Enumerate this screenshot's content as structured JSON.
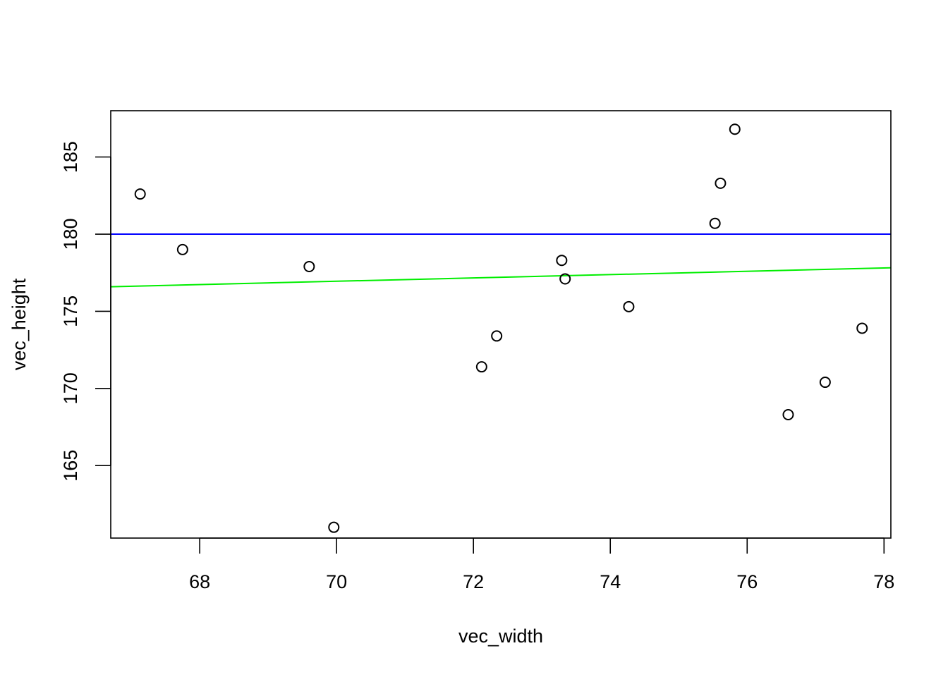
{
  "chart_data": {
    "type": "scatter",
    "title": "",
    "xlabel": "vec_width",
    "ylabel": "vec_height",
    "xlim": [
      66.7,
      78.1
    ],
    "ylim": [
      160.3,
      188.0
    ],
    "x_ticks": [
      68,
      70,
      72,
      74,
      76,
      78
    ],
    "y_ticks": [
      165,
      170,
      175,
      180,
      185
    ],
    "grid": false,
    "legend": "none",
    "series": [
      {
        "points": [
          {
            "x": 67.13,
            "y": 182.6
          },
          {
            "x": 67.75,
            "y": 179.0
          },
          {
            "x": 69.6,
            "y": 177.9
          },
          {
            "x": 69.96,
            "y": 161.0
          },
          {
            "x": 72.12,
            "y": 171.4
          },
          {
            "x": 72.34,
            "y": 173.4
          },
          {
            "x": 73.29,
            "y": 178.3
          },
          {
            "x": 73.34,
            "y": 177.1
          },
          {
            "x": 74.27,
            "y": 175.3
          },
          {
            "x": 75.53,
            "y": 180.7
          },
          {
            "x": 75.61,
            "y": 183.3
          },
          {
            "x": 75.82,
            "y": 186.8
          },
          {
            "x": 76.6,
            "y": 168.3
          },
          {
            "x": 77.14,
            "y": 170.4
          },
          {
            "x": 77.68,
            "y": 173.9
          }
        ]
      }
    ],
    "reference_lines": [
      {
        "kind": "horizontal",
        "y": 180,
        "color": "#0000FF"
      },
      {
        "kind": "regression",
        "intercept": 169.4,
        "slope": 0.1078,
        "color": "#00EE00"
      }
    ],
    "point_color": "#000000"
  }
}
